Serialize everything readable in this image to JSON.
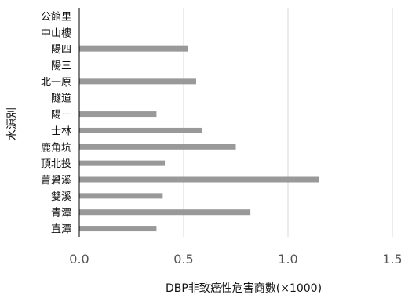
{
  "chart_data": {
    "type": "bar",
    "orientation": "horizontal",
    "categories": [
      "公館里",
      "中山樓",
      "陽四",
      "陽三",
      "北一原",
      "隧道",
      "陽一",
      "士林",
      "鹿角坑",
      "頂北投",
      "菁礐溪",
      "雙溪",
      "青潭",
      "直潭"
    ],
    "values": [
      0,
      0,
      0.52,
      0,
      0.56,
      0,
      0.37,
      0.59,
      0.75,
      0.41,
      1.15,
      0.4,
      0.82,
      0.37
    ],
    "xlabel": "DBP非致癌性危害商數(×1000)",
    "ylabel": "水源別",
    "xlim": [
      0,
      1.5
    ],
    "xticks": [
      "0.0",
      "0.5",
      "1.0",
      "1.5"
    ],
    "grid": "vertical",
    "bar_color": "#999999",
    "grid_color": "#d9d9d9",
    "axis_color": "#000000"
  }
}
